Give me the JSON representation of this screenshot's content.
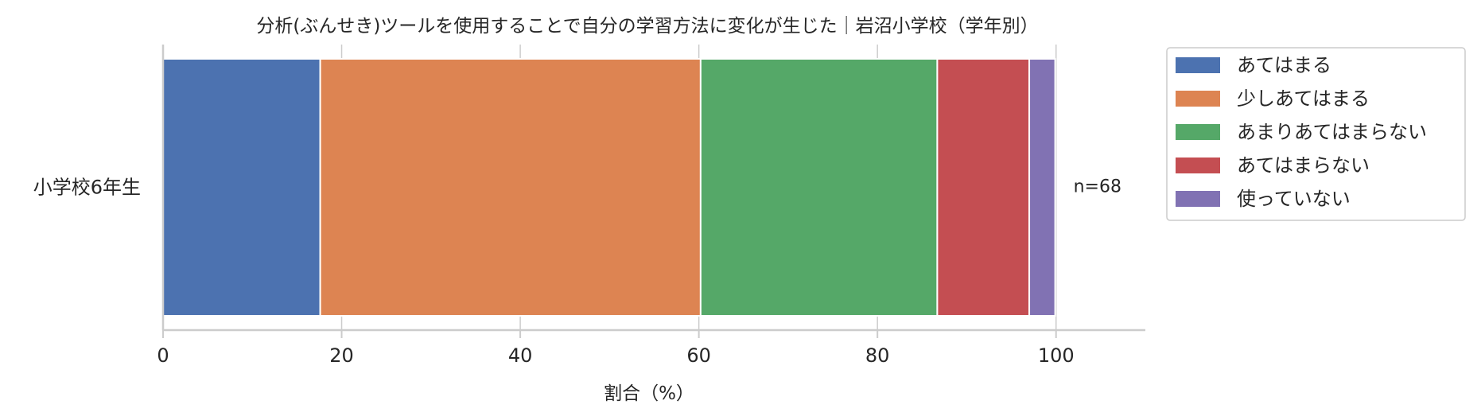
{
  "chart_data": {
    "type": "bar",
    "orientation": "horizontal",
    "stacked": true,
    "title": "分析(ぶんせき)ツールを使用することで自分の学習方法に変化が生じた｜岩沼小学校（学年別）",
    "xlabel": "割合（%）",
    "ylabel": "",
    "xlim": [
      0,
      110
    ],
    "x_ticks": [
      "0",
      "20",
      "40",
      "60",
      "80",
      "100"
    ],
    "categories": [
      "小学校6年生"
    ],
    "annotations": [
      "n=68"
    ],
    "grid": "vertical",
    "legend_position": "right",
    "series": [
      {
        "name": "あてはまる",
        "color": "#4c72b0",
        "values": [
          17.6
        ]
      },
      {
        "name": "少しあてはまる",
        "color": "#dd8452",
        "values": [
          42.6
        ]
      },
      {
        "name": "あまりあてはまらない",
        "color": "#55a868",
        "values": [
          26.5
        ]
      },
      {
        "name": "あてはまらない",
        "color": "#c44e52",
        "values": [
          10.3
        ]
      },
      {
        "name": "使っていない",
        "color": "#8172b3",
        "values": [
          2.9
        ]
      }
    ]
  }
}
